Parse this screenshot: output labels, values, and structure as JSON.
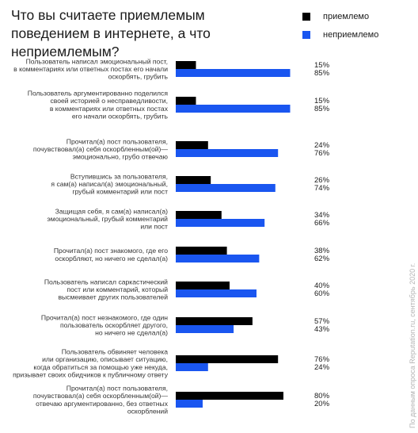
{
  "chart_data": {
    "type": "bar",
    "orientation": "horizontal",
    "title": "Что вы считаете приемлемым поведением в интернете, а что неприемлемым?",
    "categories": [
      "Пользователь написал эмоциональный пост, в комментариях или ответных постах его начали оскорбять, грубить",
      "Пользователь аргументированно поделился своей историей о несправедливости, в комментариях или ответных постах его начали оскорбять, грубить",
      "Прочитал(а) пост пользователя, почувствовал(а) себя оскорбленным(ой)— эмоционально, грубо отвечаю",
      "Вступившись за пользователя, я сам(а) написал(а) эмоциональный, грубый комментарий или пост",
      "Защищая себя, я сам(а) написал(а) эмоциональный, грубый комментарий или пост",
      "Прочитал(а) пост знакомого, где его оскорбляют, но ничего не сделал(а)",
      "Пользователь написал саркастический пост или комментарий, который высмеивает других пользователей",
      "Прочитал(а) пост незнакомого, где один пользователь оскорбляет другого, но ничего не сделал(а)",
      "Пользователь обвиняет человека или организацию, описывает ситуацию, когда обратиться за помощью уже некуда, призывает своих обидчиков к публичному ответу",
      "Прочитал(а) пост пользователя, почувствовал(а) себя оскорбленным(ой)— отвечаю аргументированно, без ответных оскорблений"
    ],
    "category_lines": [
      [
        "Пользователь написал эмоциональный пост,",
        "в комментариях или ответных постах его начали",
        "оскорбять, грубить"
      ],
      [
        "Пользователь аргументированно поделился",
        "своей историей о несправедливости,",
        "в комментариях или ответных постах",
        "его начали оскорбять, грубить"
      ],
      [
        "Прочитал(а) пост пользователя,",
        "почувствовал(а) себя оскорбленным(ой)—",
        "эмоционально, грубо отвечаю"
      ],
      [
        "Вступившись за пользователя,",
        "я сам(а) написал(а) эмоциональный,",
        "грубый комментарий или пост"
      ],
      [
        "Защищая себя, я сам(а) написал(а)",
        "эмоциональный, грубый комментарий",
        "или пост"
      ],
      [
        "Прочитал(а) пост знакомого, где его",
        "оскорбляют, но ничего не сделал(а)"
      ],
      [
        "Пользователь написал саркастический",
        "пост или комментарий, который",
        "высмеивает других пользователей"
      ],
      [
        "Прочитал(а) пост незнакомого, где один",
        "пользователь оскорбляет другого,",
        "но ничего не сделал(а)"
      ],
      [
        "Пользователь обвиняет человека",
        "или организацию, описывает ситуацию,",
        "когда обратиться за помощью уже некуда,",
        "призывает своих обидчиков к публичному ответу"
      ],
      [
        "Прочитал(а) пост пользователя,",
        "почувствовал(а) себя оскорбленным(ой)—",
        "отвечаю аргументированно, без ответных",
        "оскорблений"
      ]
    ],
    "series": [
      {
        "name": "приемлемо",
        "color": "#000000",
        "values": [
          15,
          15,
          24,
          26,
          34,
          38,
          40,
          57,
          76,
          80
        ]
      },
      {
        "name": "неприемлемо",
        "color": "#1a56f0",
        "values": [
          85,
          85,
          76,
          74,
          66,
          62,
          60,
          43,
          24,
          20
        ]
      }
    ],
    "value_suffix": "%",
    "xlim": [
      0,
      100
    ],
    "grid": false,
    "legend_position": "top-right"
  },
  "source_note": "По данным опроса Reputation.ru, сентябрь 2020 г."
}
